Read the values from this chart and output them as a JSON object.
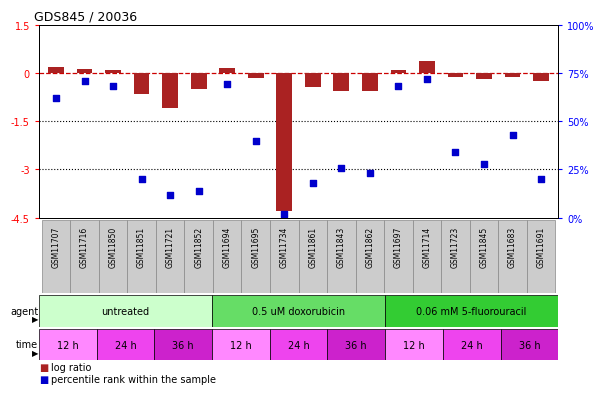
{
  "title": "GDS845 / 20036",
  "samples": [
    "GSM11707",
    "GSM11716",
    "GSM11850",
    "GSM11851",
    "GSM11721",
    "GSM11852",
    "GSM11694",
    "GSM11695",
    "GSM11734",
    "GSM11861",
    "GSM11843",
    "GSM11862",
    "GSM11697",
    "GSM11714",
    "GSM11723",
    "GSM11845",
    "GSM11683",
    "GSM11691"
  ],
  "log_ratio": [
    0.18,
    0.12,
    0.1,
    -0.65,
    -1.1,
    -0.5,
    0.15,
    -0.15,
    -4.3,
    -0.45,
    -0.55,
    -0.55,
    0.08,
    0.38,
    -0.12,
    -0.18,
    -0.12,
    -0.25
  ],
  "percentile_rank": [
    62,
    71,
    68,
    20,
    12,
    14,
    69,
    40,
    2,
    18,
    26,
    23,
    68,
    72,
    34,
    28,
    43,
    20
  ],
  "ylim_left": [
    -4.5,
    1.5
  ],
  "ylim_right": [
    0,
    100
  ],
  "yticks_left": [
    -4.5,
    -3.0,
    -1.5,
    0.0,
    1.5
  ],
  "ytick_labels_left": [
    "-4.5",
    "-3",
    "-1.5",
    "0",
    "1.5"
  ],
  "yticks_right": [
    0,
    25,
    50,
    75,
    100
  ],
  "ytick_labels_right": [
    "0%",
    "25%",
    "50%",
    "75%",
    "100%"
  ],
  "hlines": [
    -1.5,
    -3.0
  ],
  "agents": [
    {
      "label": "untreated",
      "start": 0,
      "end": 6,
      "color": "#ccffcc"
    },
    {
      "label": "0.5 uM doxorubicin",
      "start": 6,
      "end": 12,
      "color": "#66dd66"
    },
    {
      "label": "0.06 mM 5-fluorouracil",
      "start": 12,
      "end": 18,
      "color": "#33cc33"
    }
  ],
  "times": [
    {
      "label": "12 h",
      "start": 0,
      "end": 2,
      "color": "#ff88ff"
    },
    {
      "label": "24 h",
      "start": 2,
      "end": 4,
      "color": "#ee44ee"
    },
    {
      "label": "36 h",
      "start": 4,
      "end": 6,
      "color": "#cc22cc"
    },
    {
      "label": "12 h",
      "start": 6,
      "end": 8,
      "color": "#ff88ff"
    },
    {
      "label": "24 h",
      "start": 8,
      "end": 10,
      "color": "#ee44ee"
    },
    {
      "label": "36 h",
      "start": 10,
      "end": 12,
      "color": "#cc22cc"
    },
    {
      "label": "12 h",
      "start": 12,
      "end": 14,
      "color": "#ff88ff"
    },
    {
      "label": "24 h",
      "start": 14,
      "end": 16,
      "color": "#ee44ee"
    },
    {
      "label": "36 h",
      "start": 16,
      "end": 18,
      "color": "#cc22cc"
    }
  ],
  "bar_color": "#aa2222",
  "scatter_color": "#0000cc",
  "dashed_line_color": "#cc0000",
  "background_color": "#ffffff",
  "sample_box_color": "#cccccc",
  "sample_box_edge": "#888888"
}
